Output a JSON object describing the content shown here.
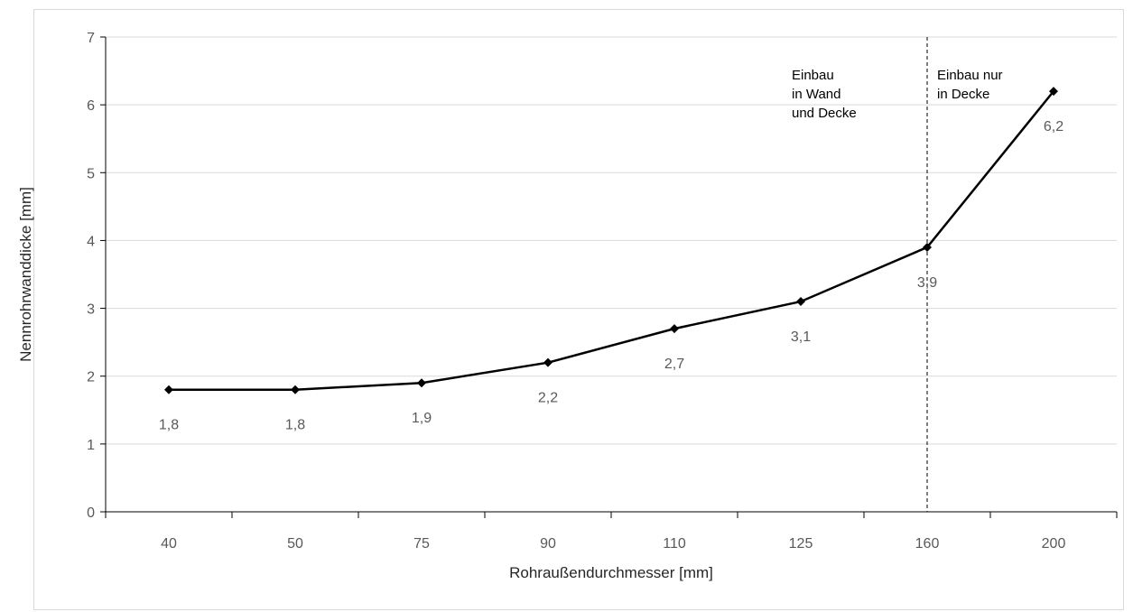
{
  "chart_data": {
    "type": "line",
    "categories": [
      "40",
      "50",
      "75",
      "90",
      "110",
      "125",
      "160",
      "200"
    ],
    "values": [
      1.8,
      1.8,
      1.9,
      2.2,
      2.7,
      3.1,
      3.9,
      6.2
    ],
    "data_labels": [
      "1,8",
      "1,8",
      "1,9",
      "2,2",
      "2,7",
      "3,1",
      "3,9",
      "6,2"
    ],
    "xlabel": "Rohraußendurchmesser [mm]",
    "ylabel": "Nennrohrwanddicke [mm]",
    "ylim": [
      0,
      7
    ],
    "yticks": [
      0,
      1,
      2,
      3,
      4,
      5,
      6,
      7
    ],
    "grid": true,
    "legend": "none",
    "divider_at_category": "160",
    "annotations": [
      {
        "name": "annotation-wall-and-ceiling",
        "lines": [
          "Einbau",
          "in Wand",
          "und Decke"
        ]
      },
      {
        "name": "annotation-ceiling-only",
        "lines": [
          "Einbau nur",
          "in Decke"
        ]
      }
    ],
    "colors": {
      "line": "#000000",
      "grid": "#d9d9d9",
      "axis": "#000000",
      "divider": "#000000"
    }
  }
}
